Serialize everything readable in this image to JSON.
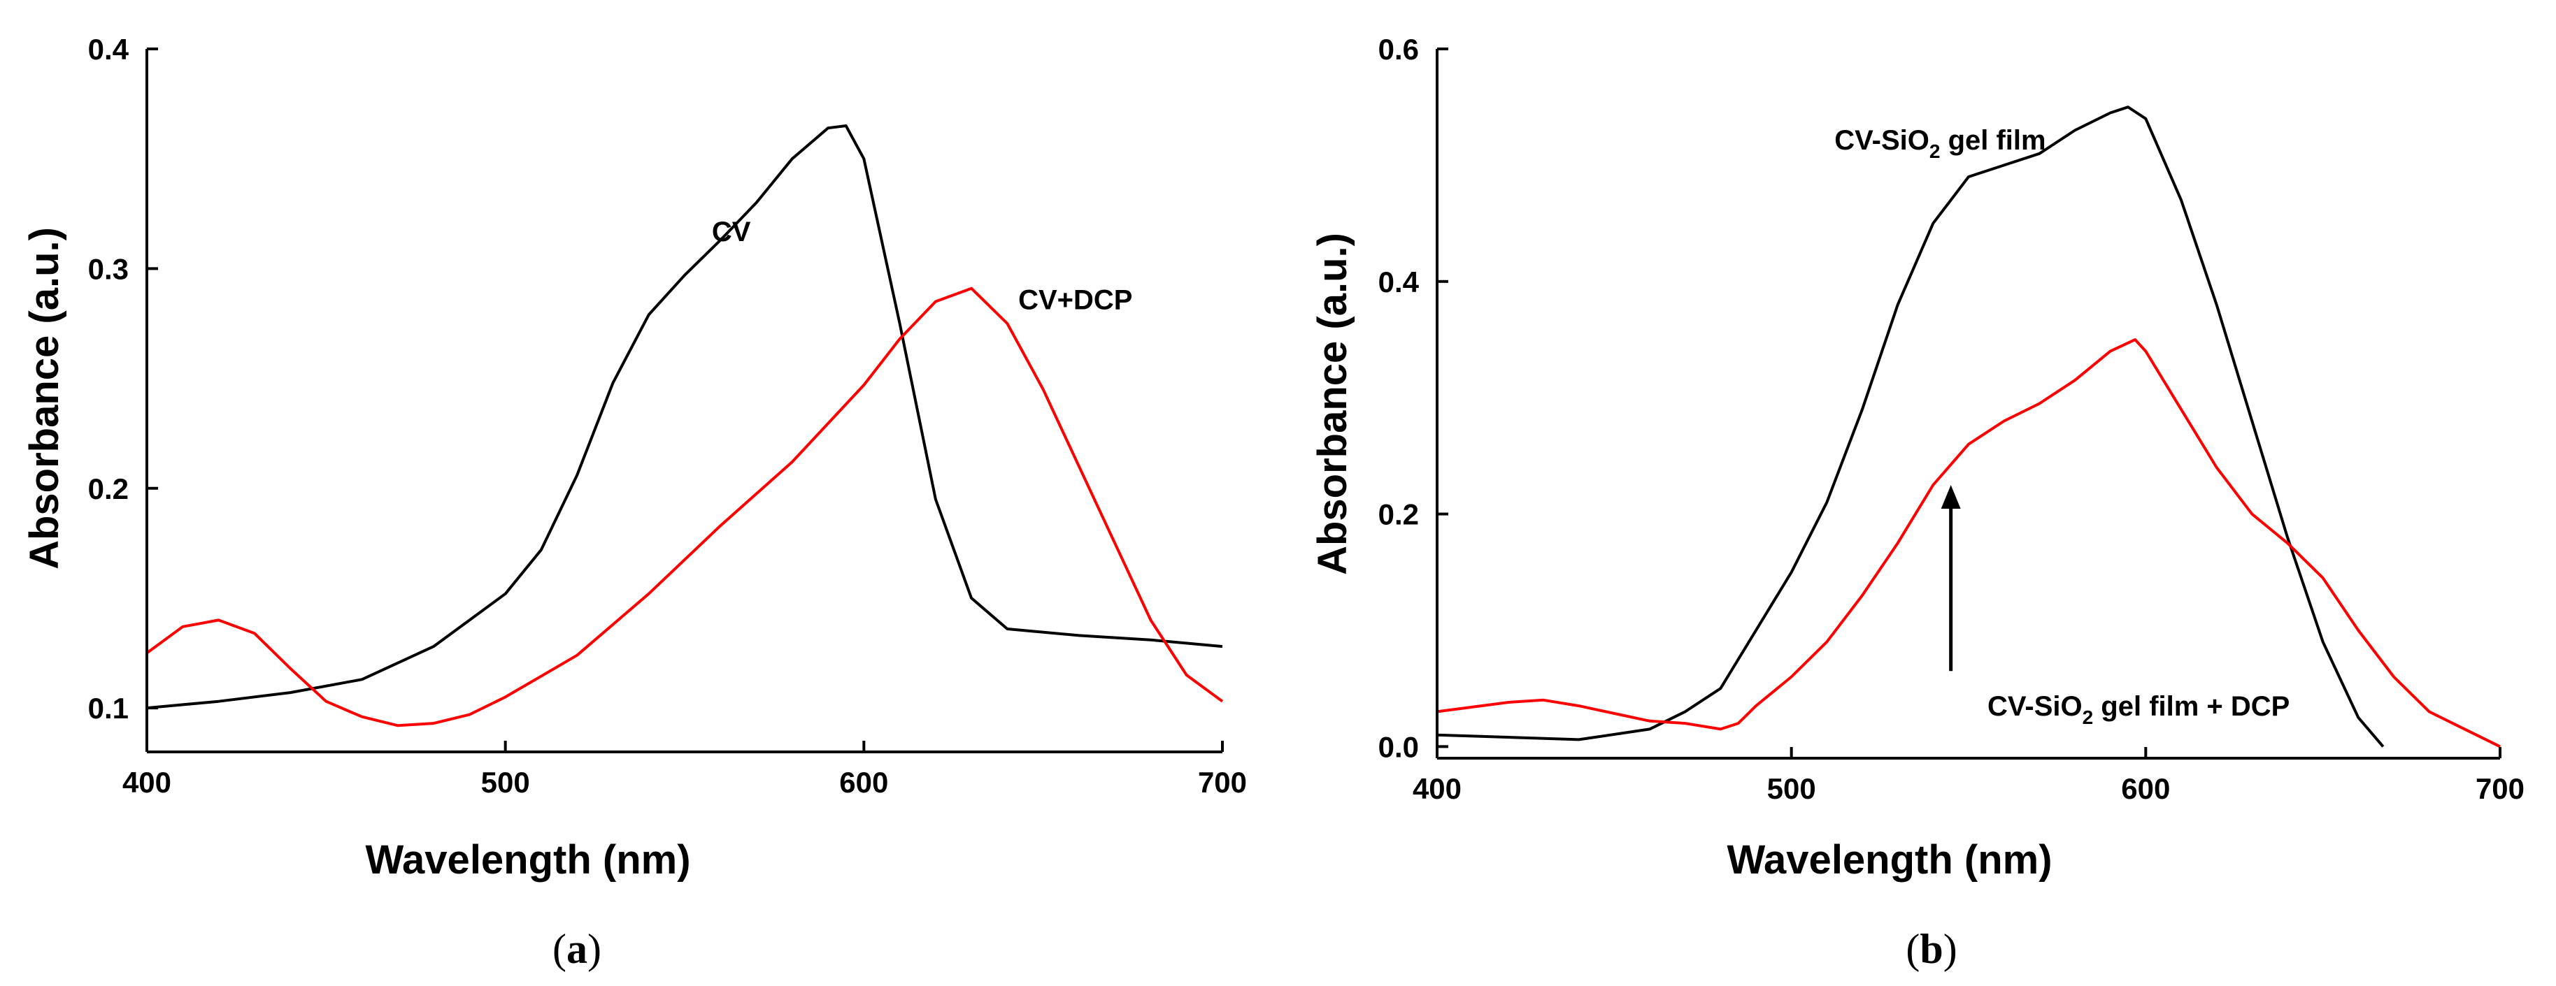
{
  "chart_data": [
    {
      "type": "line",
      "panel_caption": "(a)",
      "panel_caption_parts": [
        "(",
        "a",
        ")"
      ],
      "xlabel": "Wavelength (nm)",
      "ylabel": "Absorbance (a.u.)",
      "xlim": [
        400,
        700
      ],
      "ylim": [
        0.08,
        0.4
      ],
      "xticks": [
        400,
        500,
        600,
        700
      ],
      "xtick_labels": [
        "400",
        "500",
        "600",
        "700"
      ],
      "yticks": [
        0.1,
        0.2,
        0.3,
        0.4
      ],
      "ytick_labels": [
        "0.1",
        "0.2",
        "0.3",
        "0.4"
      ],
      "series": [
        {
          "name": "CV",
          "color": "#000000",
          "x": [
            400,
            420,
            440,
            460,
            480,
            500,
            510,
            520,
            530,
            540,
            550,
            560,
            570,
            580,
            590,
            595,
            600,
            610,
            620,
            630,
            640,
            660,
            680,
            700
          ],
          "y": [
            0.1,
            0.103,
            0.107,
            0.113,
            0.128,
            0.152,
            0.172,
            0.206,
            0.248,
            0.279,
            0.297,
            0.313,
            0.33,
            0.35,
            0.364,
            0.365,
            0.35,
            0.275,
            0.195,
            0.15,
            0.136,
            0.133,
            0.131,
            0.128
          ]
        },
        {
          "name": "CV+DCP",
          "color": "#ff0000",
          "x": [
            400,
            410,
            420,
            430,
            440,
            450,
            460,
            470,
            480,
            490,
            500,
            520,
            540,
            560,
            580,
            600,
            610,
            620,
            630,
            640,
            650,
            660,
            670,
            680,
            690,
            700
          ],
          "y": [
            0.125,
            0.137,
            0.14,
            0.134,
            0.118,
            0.103,
            0.096,
            0.092,
            0.093,
            0.097,
            0.105,
            0.124,
            0.152,
            0.183,
            0.212,
            0.247,
            0.268,
            0.285,
            0.291,
            0.275,
            0.245,
            0.21,
            0.175,
            0.14,
            0.115,
            0.103
          ]
        }
      ],
      "annotations": [
        {
          "text": "CV",
          "x": 563,
          "y": 0.317
        },
        {
          "text": "CV+DCP",
          "x": 659,
          "y": 0.286
        }
      ]
    },
    {
      "type": "line",
      "panel_caption": "(b)",
      "panel_caption_parts": [
        "(",
        "b",
        ")"
      ],
      "xlabel": "Wavelength (nm)",
      "ylabel": "Absorbance (a.u.)",
      "xlim": [
        400,
        700
      ],
      "ylim": [
        -0.01,
        0.6
      ],
      "xticks": [
        400,
        500,
        600,
        700
      ],
      "xtick_labels": [
        "400",
        "500",
        "600",
        "700"
      ],
      "yticks": [
        0.0,
        0.2,
        0.4,
        0.6
      ],
      "ytick_labels": [
        "0.0",
        "0.2",
        "0.4",
        "0.6"
      ],
      "series": [
        {
          "name": "CV-SiO2 gel film",
          "color": "#000000",
          "x": [
            400,
            420,
            440,
            460,
            470,
            480,
            490,
            500,
            510,
            520,
            530,
            540,
            550,
            560,
            570,
            580,
            590,
            595,
            600,
            610,
            620,
            630,
            640,
            650,
            660,
            667
          ],
          "y": [
            0.01,
            0.008,
            0.006,
            0.015,
            0.03,
            0.05,
            0.1,
            0.15,
            0.21,
            0.29,
            0.38,
            0.45,
            0.49,
            0.5,
            0.51,
            0.53,
            0.545,
            0.55,
            0.54,
            0.47,
            0.38,
            0.28,
            0.18,
            0.09,
            0.025,
            0.0
          ]
        },
        {
          "name": "CV-SiO2 gel film + DCP",
          "color": "#ff0000",
          "x": [
            400,
            420,
            430,
            440,
            460,
            470,
            480,
            485,
            490,
            500,
            510,
            520,
            530,
            540,
            550,
            560,
            570,
            580,
            590,
            597,
            600,
            610,
            620,
            630,
            640,
            650,
            660,
            670,
            680,
            690,
            700
          ],
          "y": [
            0.03,
            0.038,
            0.04,
            0.035,
            0.022,
            0.02,
            0.015,
            0.02,
            0.035,
            0.06,
            0.09,
            0.13,
            0.175,
            0.225,
            0.26,
            0.28,
            0.295,
            0.315,
            0.34,
            0.35,
            0.34,
            0.29,
            0.24,
            0.2,
            0.175,
            0.145,
            0.1,
            0.06,
            0.03,
            0.015,
            0.0
          ]
        }
      ],
      "annotations": [
        {
          "text": "CV-SiO",
          "sub": "2",
          "rest": " gel film",
          "x": 542,
          "y": 0.522
        },
        {
          "text": "CV-SiO",
          "sub": "2",
          "rest": " gel film + DCP",
          "x": 598,
          "y": 0.035
        }
      ],
      "arrow": {
        "x": 545,
        "from_y": 0.065,
        "to_y": 0.225
      }
    }
  ]
}
